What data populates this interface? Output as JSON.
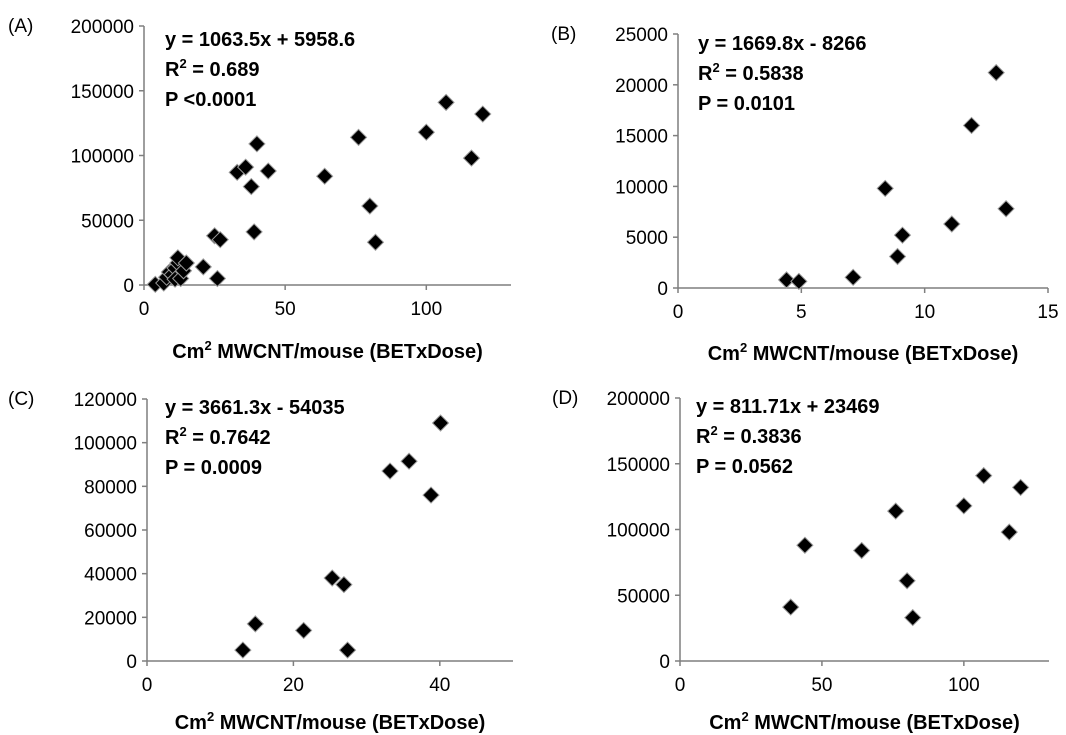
{
  "chart_data": [
    {
      "type": "scatter",
      "panel_label": "(A)",
      "xlabel_main": "Cm",
      "xlabel_sup": "2",
      "xlabel_rest": " MWCNT/mouse (BETxDose)",
      "xlim": [
        0,
        130
      ],
      "ylim": [
        0,
        200000
      ],
      "xticks": [
        0,
        50,
        100
      ],
      "yticks": [
        0,
        50000,
        100000,
        150000,
        200000
      ],
      "annotation": {
        "equation": "y = 1063.5x + 5958.6",
        "r2_label": "R",
        "r2_sup": "2",
        "r2_value": " = 0.689",
        "p": "P <0.0001"
      },
      "points": [
        {
          "x": 4,
          "y": 500
        },
        {
          "x": 7,
          "y": 1500
        },
        {
          "x": 8,
          "y": 6000
        },
        {
          "x": 9,
          "y": 10000
        },
        {
          "x": 10,
          "y": 8000
        },
        {
          "x": 11,
          "y": 13000
        },
        {
          "x": 11,
          "y": 4500
        },
        {
          "x": 12,
          "y": 17000
        },
        {
          "x": 12,
          "y": 21000
        },
        {
          "x": 13,
          "y": 5000
        },
        {
          "x": 14,
          "y": 11000
        },
        {
          "x": 15,
          "y": 17000
        },
        {
          "x": 21,
          "y": 14000
        },
        {
          "x": 25,
          "y": 38000
        },
        {
          "x": 26,
          "y": 5000
        },
        {
          "x": 27,
          "y": 35000
        },
        {
          "x": 33,
          "y": 87000
        },
        {
          "x": 36,
          "y": 91000
        },
        {
          "x": 38,
          "y": 76000
        },
        {
          "x": 39,
          "y": 41000
        },
        {
          "x": 40,
          "y": 109000
        },
        {
          "x": 44,
          "y": 88000
        },
        {
          "x": 64,
          "y": 84000
        },
        {
          "x": 76,
          "y": 114000
        },
        {
          "x": 80,
          "y": 61000
        },
        {
          "x": 82,
          "y": 33000
        },
        {
          "x": 100,
          "y": 118000
        },
        {
          "x": 107,
          "y": 141000
        },
        {
          "x": 116,
          "y": 98000
        },
        {
          "x": 120,
          "y": 132000
        }
      ]
    },
    {
      "type": "scatter",
      "panel_label": "(B)",
      "xlabel_main": "Cm",
      "xlabel_sup": "2",
      "xlabel_rest": " MWCNT/mouse (BETxDose)",
      "xlim": [
        0,
        15
      ],
      "ylim": [
        0,
        25000
      ],
      "xticks": [
        0,
        5,
        10,
        15
      ],
      "yticks": [
        0,
        5000,
        10000,
        15000,
        20000,
        25000
      ],
      "annotation": {
        "equation": "y = 1669.8x - 8266",
        "r2_label": "R",
        "r2_sup": "2",
        "r2_value": " = 0.5838",
        "p": "P = 0.0101"
      },
      "points": [
        {
          "x": 4.4,
          "y": 800
        },
        {
          "x": 4.9,
          "y": 650
        },
        {
          "x": 7.1,
          "y": 1050
        },
        {
          "x": 8.4,
          "y": 9800
        },
        {
          "x": 8.9,
          "y": 3100
        },
        {
          "x": 9.1,
          "y": 5200
        },
        {
          "x": 11.1,
          "y": 6300
        },
        {
          "x": 11.9,
          "y": 16000
        },
        {
          "x": 12.9,
          "y": 21200
        },
        {
          "x": 13.3,
          "y": 7800
        }
      ]
    },
    {
      "type": "scatter",
      "panel_label": "(C)",
      "xlabel_main": "Cm",
      "xlabel_sup": "2",
      "xlabel_rest": " MWCNT/mouse (BETxDose)",
      "xlim": [
        0,
        50
      ],
      "ylim": [
        0,
        120000
      ],
      "xticks": [
        0,
        20,
        40
      ],
      "yticks": [
        0,
        20000,
        40000,
        60000,
        80000,
        100000,
        120000
      ],
      "annotation": {
        "equation": "y = 3661.3x - 54035",
        "r2_label": "R",
        "r2_sup": "2",
        "r2_value": " = 0.7642",
        "p": "P = 0.0009"
      },
      "points": [
        {
          "x": 13.1,
          "y": 5000
        },
        {
          "x": 14.8,
          "y": 17000
        },
        {
          "x": 21.4,
          "y": 14000
        },
        {
          "x": 25.3,
          "y": 38000
        },
        {
          "x": 26.9,
          "y": 35000
        },
        {
          "x": 27.4,
          "y": 5000
        },
        {
          "x": 33.2,
          "y": 87000
        },
        {
          "x": 35.8,
          "y": 91500
        },
        {
          "x": 38.8,
          "y": 76000
        },
        {
          "x": 40.1,
          "y": 109000
        }
      ]
    },
    {
      "type": "scatter",
      "panel_label": "(D)",
      "xlabel_main": "Cm",
      "xlabel_sup": "2",
      "xlabel_rest": " MWCNT/mouse (BETxDose)",
      "xlim": [
        0,
        130
      ],
      "ylim": [
        0,
        200000
      ],
      "xticks": [
        0,
        50,
        100
      ],
      "yticks": [
        0,
        50000,
        100000,
        150000,
        200000
      ],
      "annotation": {
        "equation": "y = 811.71x + 23469",
        "r2_label": "R",
        "r2_sup": "2",
        "r2_value": " = 0.3836",
        "p": "P = 0.0562"
      },
      "points": [
        {
          "x": 39,
          "y": 41000
        },
        {
          "x": 44,
          "y": 88000
        },
        {
          "x": 64,
          "y": 84000
        },
        {
          "x": 76,
          "y": 114000
        },
        {
          "x": 80,
          "y": 61000
        },
        {
          "x": 82,
          "y": 33000
        },
        {
          "x": 100,
          "y": 118000
        },
        {
          "x": 107,
          "y": 141000
        },
        {
          "x": 116,
          "y": 98000
        },
        {
          "x": 120,
          "y": 132000
        }
      ]
    }
  ]
}
